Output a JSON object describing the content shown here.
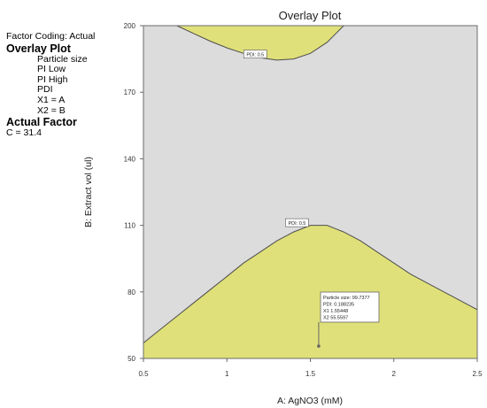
{
  "side_panel": {
    "factor_coding": "Factor Coding: Actual",
    "overlay_heading": "Overlay Plot",
    "overlay_items": [
      "Particle size",
      "PI Low",
      "PI High",
      "PDI",
      "X1 = A",
      "X2 = B"
    ],
    "actual_heading": "Actual Factor",
    "actual_value": "C = 31.4"
  },
  "chart_data": {
    "type": "area",
    "title": "Overlay Plot",
    "xlabel": "A: AgNO3 (mM)",
    "ylabel": "B: Extract vol (ul)",
    "xlim": [
      0.5,
      2.5
    ],
    "ylim": [
      50,
      200
    ],
    "xticks": [
      "0.5",
      "1",
      "1.5",
      "2",
      "2.5"
    ],
    "yticks": [
      "50",
      "80",
      "110",
      "140",
      "170",
      "200"
    ],
    "background_color": "#dcdcdc",
    "fill_color": "#e0e07a",
    "edge_color": "#4d4d4d",
    "regions": [
      {
        "name": "PDI 0.5",
        "contour_label": "PDI: 0.5",
        "side": "below",
        "x": [
          0.5,
          0.6,
          0.7,
          0.8,
          0.9,
          1.0,
          1.1,
          1.2,
          1.3,
          1.4,
          1.5,
          1.6,
          1.7,
          1.8,
          1.9,
          2.0,
          2.1,
          2.2,
          2.3,
          2.4,
          2.5
        ],
        "y": [
          57,
          63,
          69,
          75,
          81,
          87,
          93,
          98,
          103,
          107,
          110,
          110,
          107,
          103,
          98,
          93,
          88,
          84,
          80,
          76,
          72
        ],
        "label_at": [
          1.42,
          111
        ]
      },
      {
        "name": "PDI 0.5",
        "contour_label": "PDI: 0.5",
        "side": "above",
        "x": [
          0.7,
          0.8,
          0.9,
          1.0,
          1.1,
          1.2,
          1.3,
          1.4,
          1.5,
          1.6,
          1.7
        ],
        "y": [
          200,
          196.5,
          193,
          190,
          187.5,
          185.5,
          184.5,
          185,
          187.5,
          192.5,
          200
        ],
        "label_at": [
          1.17,
          187
        ]
      }
    ],
    "flag": {
      "x": 1.55,
      "y": 55.56,
      "lines": [
        "Particle size:  99.7377",
        "PDI:  0.188235",
        "X1  1.55448",
        "X2  55.5597"
      ]
    }
  }
}
